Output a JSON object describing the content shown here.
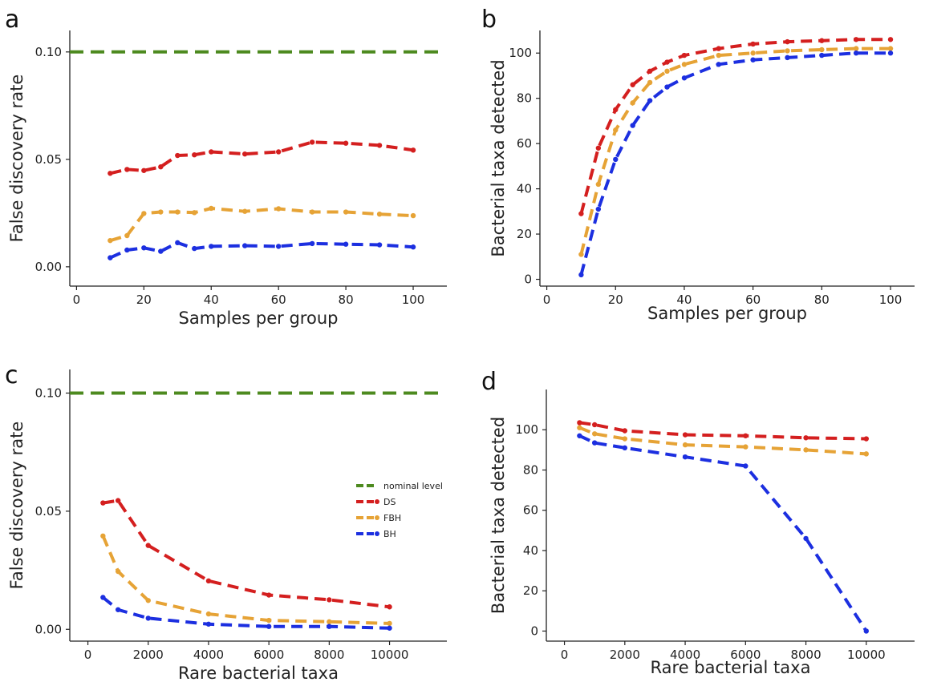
{
  "colors": {
    "nominal": "#4d8a1f",
    "DS": "#d41f1f",
    "FBH": "#e6a336",
    "BH": "#1c2fe0",
    "axis": "#222222"
  },
  "legend": {
    "placement": "center-right of panel c",
    "entries": [
      {
        "key": "nominal",
        "label": "nominal level"
      },
      {
        "key": "DS",
        "label": "DS"
      },
      {
        "key": "FBH",
        "label": "FBH"
      },
      {
        "key": "BH",
        "label": "BH"
      }
    ]
  },
  "chart_data": [
    {
      "panel": "a",
      "type": "line",
      "xlabel": "Samples per group",
      "ylabel": "False discovery rate",
      "xlim": [
        -2,
        110
      ],
      "ylim": [
        -0.009,
        0.11
      ],
      "xticks": [
        0,
        20,
        40,
        60,
        80,
        100
      ],
      "xtick_labels": [
        "0",
        "20",
        "40",
        "60",
        "80",
        "100"
      ],
      "yticks": [
        0.0,
        0.05,
        0.1
      ],
      "ytick_labels": [
        "0.00",
        "0.05",
        "0.10"
      ],
      "hline": {
        "y": 0.1,
        "series": "nominal"
      },
      "series": [
        {
          "key": "DS",
          "x": [
            10,
            15,
            20,
            25,
            30,
            35,
            40,
            50,
            60,
            70,
            80,
            90,
            100
          ],
          "y": [
            0.0435,
            0.0453,
            0.0448,
            0.0465,
            0.0518,
            0.0521,
            0.0535,
            0.0525,
            0.0535,
            0.058,
            0.0575,
            0.0565,
            0.0543
          ]
        },
        {
          "key": "FBH",
          "x": [
            10,
            15,
            20,
            25,
            30,
            35,
            40,
            50,
            60,
            70,
            80,
            90,
            100
          ],
          "y": [
            0.0122,
            0.0145,
            0.0248,
            0.0255,
            0.0255,
            0.0252,
            0.0272,
            0.0258,
            0.027,
            0.0255,
            0.0255,
            0.0245,
            0.0238
          ]
        },
        {
          "key": "BH",
          "x": [
            10,
            15,
            20,
            25,
            30,
            35,
            40,
            50,
            60,
            70,
            80,
            90,
            100
          ],
          "y": [
            0.0042,
            0.0078,
            0.0088,
            0.0072,
            0.0112,
            0.0085,
            0.0095,
            0.0098,
            0.0095,
            0.0108,
            0.0105,
            0.0102,
            0.0092
          ]
        }
      ]
    },
    {
      "panel": "b",
      "type": "line",
      "xlabel": "Samples per group",
      "ylabel": "Bacterial taxa detected",
      "xlim": [
        -2,
        107
      ],
      "ylim": [
        -3,
        110
      ],
      "xticks": [
        0,
        20,
        40,
        60,
        80,
        100
      ],
      "xtick_labels": [
        "0",
        "20",
        "40",
        "60",
        "80",
        "100"
      ],
      "yticks": [
        0,
        20,
        40,
        60,
        80,
        100
      ],
      "ytick_labels": [
        "0",
        "20",
        "40",
        "60",
        "80",
        "100"
      ],
      "series": [
        {
          "key": "DS",
          "x": [
            10,
            15,
            20,
            25,
            30,
            35,
            40,
            50,
            60,
            70,
            80,
            90,
            100
          ],
          "y": [
            29,
            58,
            75,
            86,
            92,
            96,
            99,
            102,
            104,
            105,
            105.5,
            106,
            106
          ]
        },
        {
          "key": "FBH",
          "x": [
            10,
            15,
            20,
            25,
            30,
            35,
            40,
            50,
            60,
            70,
            80,
            90,
            100
          ],
          "y": [
            11,
            42,
            66,
            78,
            87,
            92,
            95,
            99,
            100,
            101,
            101.5,
            102,
            102
          ]
        },
        {
          "key": "BH",
          "x": [
            10,
            15,
            20,
            25,
            30,
            35,
            40,
            50,
            60,
            70,
            80,
            90,
            100
          ],
          "y": [
            2,
            31,
            53,
            68,
            79,
            85,
            89,
            95,
            97,
            98,
            99,
            100,
            100
          ]
        }
      ]
    },
    {
      "panel": "c",
      "type": "line",
      "xlabel": "Rare bacterial taxa",
      "ylabel": "False discovery rate",
      "xlim": [
        -600,
        11900
      ],
      "ylim": [
        -0.005,
        0.11
      ],
      "xticks": [
        0,
        2000,
        4000,
        6000,
        8000,
        10000
      ],
      "xtick_labels": [
        "0",
        "2000",
        "4000",
        "6000",
        "8000",
        "10000"
      ],
      "yticks": [
        0.0,
        0.05,
        0.1
      ],
      "ytick_labels": [
        "0.00",
        "0.05",
        "0.10"
      ],
      "hline": {
        "y": 0.1,
        "series": "nominal"
      },
      "series": [
        {
          "key": "DS",
          "x": [
            500,
            1000,
            2000,
            4000,
            6000,
            8000,
            10000
          ],
          "y": [
            0.0535,
            0.0545,
            0.0355,
            0.0205,
            0.0145,
            0.0125,
            0.0095
          ]
        },
        {
          "key": "FBH",
          "x": [
            500,
            1000,
            2000,
            4000,
            6000,
            8000,
            10000
          ],
          "y": [
            0.0395,
            0.0245,
            0.0122,
            0.0065,
            0.0038,
            0.0032,
            0.0025
          ]
        },
        {
          "key": "BH",
          "x": [
            500,
            1000,
            2000,
            4000,
            6000,
            8000,
            10000
          ],
          "y": [
            0.0135,
            0.0083,
            0.0047,
            0.0022,
            0.0012,
            0.0012,
            0.0005
          ]
        }
      ]
    },
    {
      "panel": "d",
      "type": "line",
      "xlabel": "Rare bacterial taxa",
      "ylabel": "Bacterial taxa detected",
      "xlim": [
        -600,
        11600
      ],
      "ylim": [
        -5,
        120
      ],
      "xticks": [
        0,
        2000,
        4000,
        6000,
        8000,
        10000
      ],
      "xtick_labels": [
        "0",
        "2000",
        "4000",
        "6000",
        "8000",
        "10000"
      ],
      "yticks": [
        0,
        20,
        40,
        60,
        80,
        100
      ],
      "ytick_labels": [
        "0",
        "20",
        "40",
        "60",
        "80",
        "100"
      ],
      "series": [
        {
          "key": "DS",
          "x": [
            500,
            1000,
            2000,
            4000,
            6000,
            8000,
            10000
          ],
          "y": [
            103.5,
            102.5,
            99.5,
            97.5,
            97,
            96,
            95.5
          ]
        },
        {
          "key": "FBH",
          "x": [
            500,
            1000,
            2000,
            4000,
            6000,
            8000,
            10000
          ],
          "y": [
            101,
            98,
            95.5,
            92.5,
            91.5,
            90,
            88
          ]
        },
        {
          "key": "BH",
          "x": [
            500,
            1000,
            2000,
            4000,
            6000,
            8000,
            10000
          ],
          "y": [
            97,
            93.5,
            91,
            86.5,
            82,
            46,
            0
          ]
        }
      ]
    }
  ]
}
